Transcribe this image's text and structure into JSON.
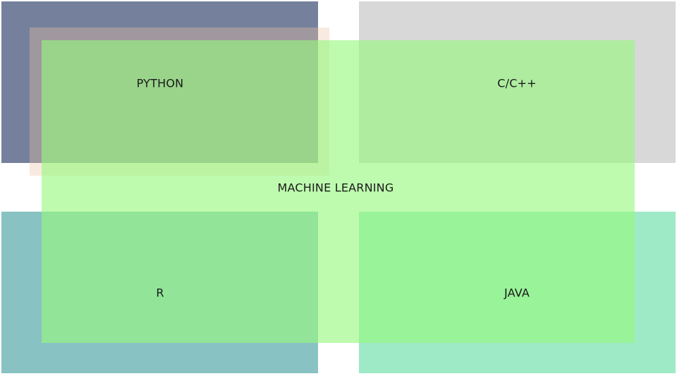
{
  "diagram": {
    "center": {
      "label": "MACHINE LEARNING"
    },
    "quadrants": {
      "top_left": {
        "label": "PYTHON"
      },
      "top_right": {
        "label": "C/C++"
      },
      "bottom_left": {
        "label": "R"
      },
      "bottom_right": {
        "label": "JAVA"
      }
    }
  },
  "colors": {
    "python": "#75819c",
    "cpp": "#d8d8d8",
    "r": "#88c2c2",
    "java": "#9feac6",
    "machine_learning": "#96f87e"
  }
}
